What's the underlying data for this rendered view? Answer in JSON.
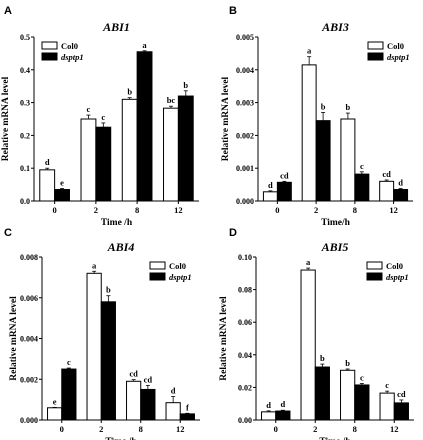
{
  "chart_data": [
    {
      "panel": "A",
      "type": "bar",
      "title": "ABI1",
      "xlabel": "Time /h",
      "ylabel": "Relative mRNA level",
      "categories": [
        "0",
        "2",
        "8",
        "12"
      ],
      "ylim": [
        0,
        0.5
      ],
      "yticks": [
        0.0,
        0.1,
        0.2,
        0.3,
        0.4,
        0.5
      ],
      "ytick_labels": [
        "0.0",
        "0.1",
        "0.2",
        "0.3",
        "0.4",
        "0.5"
      ],
      "legend_position": "top-left",
      "series": [
        {
          "name": "Col0",
          "fill": "#ffffff",
          "values": [
            0.095,
            0.25,
            0.31,
            0.283
          ],
          "errors": [
            0.005,
            0.012,
            0.005,
            0.006
          ],
          "labels": [
            "d",
            "c",
            "b",
            "bc"
          ]
        },
        {
          "name": "dsptp1",
          "fill": "#000000",
          "values": [
            0.035,
            0.225,
            0.455,
            0.32
          ],
          "errors": [
            0.003,
            0.013,
            0.003,
            0.016
          ],
          "labels": [
            "e",
            "c",
            "a",
            "b"
          ]
        }
      ]
    },
    {
      "panel": "B",
      "type": "bar",
      "title": "ABI3",
      "xlabel": "Time/h",
      "ylabel": "Relative mRNA level",
      "categories": [
        "0",
        "2",
        "8",
        "12"
      ],
      "ylim": [
        0,
        0.005
      ],
      "yticks": [
        0.0,
        0.001,
        0.002,
        0.003,
        0.004,
        0.005
      ],
      "ytick_labels": [
        "0.000",
        "0.001",
        "0.002",
        "0.003",
        "0.004",
        "0.005"
      ],
      "legend_position": "top-right",
      "series": [
        {
          "name": "Col0",
          "fill": "#ffffff",
          "values": [
            0.00028,
            0.00415,
            0.0025,
            0.0006
          ],
          "errors": [
            3e-05,
            0.00025,
            0.00018,
            4e-05
          ],
          "labels": [
            "d",
            "a",
            "b",
            "cd"
          ]
        },
        {
          "name": "dsptp1",
          "fill": "#000000",
          "values": [
            0.00057,
            0.00245,
            0.00082,
            0.00035
          ],
          "errors": [
            3e-05,
            0.00025,
            7e-05,
            3e-05
          ],
          "labels": [
            "cd",
            "b",
            "c",
            "d"
          ]
        }
      ]
    },
    {
      "panel": "C",
      "type": "bar",
      "title": "ABI4",
      "xlabel": "Time /h",
      "ylabel": "Relative mRNA level",
      "categories": [
        "0",
        "2",
        "8",
        "12"
      ],
      "ylim": [
        0,
        0.008
      ],
      "yticks": [
        0.0,
        0.002,
        0.004,
        0.006,
        0.008
      ],
      "ytick_labels": [
        "0.000",
        "0.002",
        "0.004",
        "0.006",
        "0.008"
      ],
      "legend_position": "top-right",
      "series": [
        {
          "name": "Col0",
          "fill": "#ffffff",
          "values": [
            0.0006,
            0.0072,
            0.0019,
            0.00085
          ],
          "errors": [
            2e-05,
            0.0001,
            8e-05,
            0.0003
          ],
          "labels": [
            "e",
            "a",
            "cd",
            "d"
          ]
        },
        {
          "name": "dsptp1",
          "fill": "#000000",
          "values": [
            0.0025,
            0.0058,
            0.0015,
            0.0003
          ],
          "errors": [
            5e-05,
            0.0003,
            0.0002,
            3e-05
          ],
          "labels": [
            "c",
            "b",
            "cd",
            "f"
          ]
        }
      ]
    },
    {
      "panel": "D",
      "type": "bar",
      "title": "ABI5",
      "xlabel": "Time /h",
      "ylabel": "Relative mRNA level",
      "categories": [
        "0",
        "2",
        "8",
        "12"
      ],
      "ylim": [
        0,
        0.1
      ],
      "yticks": [
        0.0,
        0.02,
        0.04,
        0.06,
        0.08,
        0.1
      ],
      "ytick_labels": [
        "0.00",
        "0.02",
        "0.04",
        "0.06",
        "0.08",
        "0.10"
      ],
      "legend_position": "top-right",
      "series": [
        {
          "name": "Col0",
          "fill": "#ffffff",
          "values": [
            0.005,
            0.092,
            0.0305,
            0.0165
          ],
          "errors": [
            0.0006,
            0.0012,
            0.0008,
            0.0012
          ],
          "labels": [
            "d",
            "a",
            "b",
            "c"
          ]
        },
        {
          "name": "dsptp1",
          "fill": "#000000",
          "values": [
            0.0055,
            0.0325,
            0.0215,
            0.0105
          ],
          "errors": [
            0.0005,
            0.0018,
            0.0009,
            0.0018
          ],
          "labels": [
            "d",
            "b",
            "c",
            "cd"
          ]
        }
      ]
    }
  ]
}
